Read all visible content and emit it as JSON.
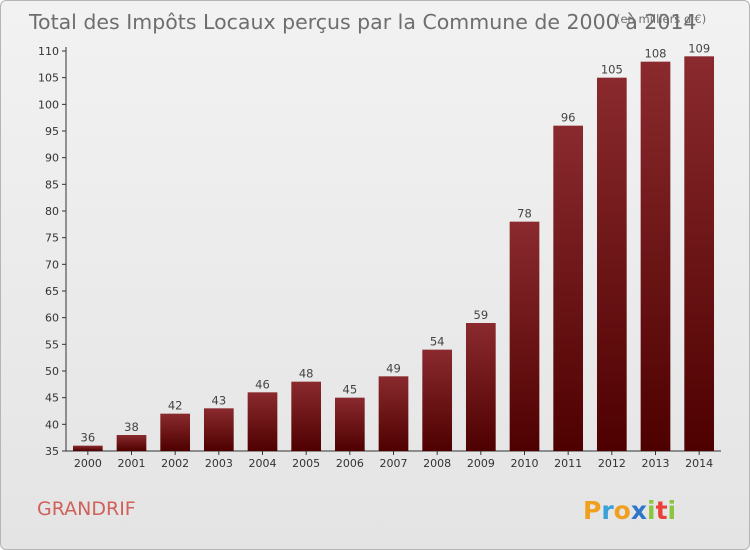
{
  "chart_data": {
    "type": "bar",
    "title": "Total des Impôts Locaux perçus par la Commune de 2000 à 2014",
    "subtitle": "(en milliers d'€)",
    "categories": [
      "2000",
      "2001",
      "2002",
      "2003",
      "2004",
      "2005",
      "2006",
      "2007",
      "2008",
      "2009",
      "2010",
      "2011",
      "2012",
      "2013",
      "2014"
    ],
    "values": [
      36,
      38,
      42,
      43,
      46,
      48,
      45,
      49,
      54,
      59,
      78,
      96,
      105,
      108,
      109
    ],
    "ylim": [
      35,
      110
    ],
    "yticks": [
      35,
      40,
      45,
      50,
      55,
      60,
      65,
      70,
      75,
      80,
      85,
      90,
      95,
      100,
      105,
      110
    ],
    "grid": false,
    "xlabel": "",
    "ylabel": "",
    "bar_color": "#7a1818"
  },
  "commune": "GRANDRIF",
  "brand": {
    "letters": [
      "P",
      "r",
      "o",
      "x",
      "i",
      "t",
      "i"
    ],
    "colors": [
      "#f0a020",
      "#3aa0d8",
      "#f0a020",
      "#2f76c8",
      "#8cc63f",
      "#e8403a",
      "#8cc63f"
    ]
  }
}
